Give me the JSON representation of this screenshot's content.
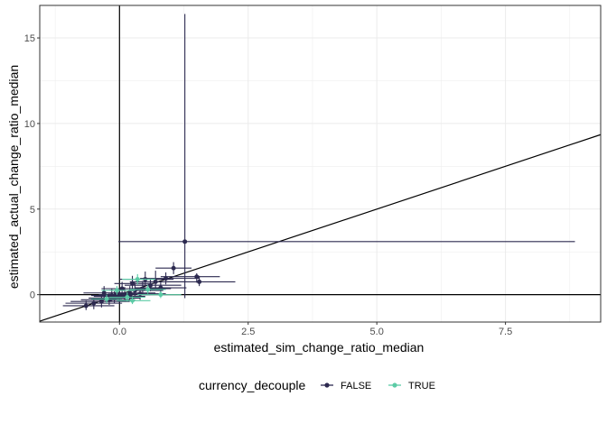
{
  "chart_data": {
    "type": "scatter",
    "xlabel": "estimated_sim_change_ratio_median",
    "ylabel": "estimated_actual_change_ratio_median",
    "xlim": [
      -1.55,
      9.35
    ],
    "ylim": [
      -1.6,
      16.9
    ],
    "xticks": [
      0,
      2.5,
      5,
      7.5
    ],
    "xtick_labels": [
      "0.0",
      "2.5",
      "5.0",
      "7.5"
    ],
    "yticks": [
      0,
      5,
      10,
      15
    ],
    "ytick_labels": [
      "0",
      "5",
      "10",
      "15"
    ],
    "grid": true,
    "reference_lines": {
      "vertical_x": 0,
      "horizontal_y": 0,
      "diagonal": {
        "slope": 1,
        "intercept": 0
      }
    },
    "legend": {
      "title": "currency_decouple",
      "position": "bottom",
      "entries": [
        "FALSE",
        "TRUE"
      ]
    },
    "series": [
      {
        "name": "FALSE",
        "color": "#2d2a50",
        "points": [
          {
            "x": 1.27,
            "y": 3.1,
            "xmin": -0.02,
            "xmax": 8.85,
            "ymin": -0.2,
            "ymax": 16.4
          },
          {
            "x": 1.05,
            "y": 1.55,
            "xmin": 0.7,
            "xmax": 1.4,
            "ymin": 1.2,
            "ymax": 1.9
          },
          {
            "x": 1.55,
            "y": 0.75,
            "xmin": 0.9,
            "xmax": 2.25,
            "ymin": 0.5,
            "ymax": 1.1
          },
          {
            "x": 1.5,
            "y": 1.05,
            "xmin": 0.8,
            "xmax": 1.95,
            "ymin": 0.7,
            "ymax": 1.25
          },
          {
            "x": 0.9,
            "y": 0.95,
            "xmin": 0.4,
            "xmax": 1.55,
            "ymin": 0.6,
            "ymax": 1.3
          },
          {
            "x": 0.7,
            "y": 0.75,
            "xmin": 0.2,
            "xmax": 1.3,
            "ymin": 0.4,
            "ymax": 1.4
          },
          {
            "x": 0.6,
            "y": 0.55,
            "xmin": 0.1,
            "xmax": 1.2,
            "ymin": 0.2,
            "ymax": 0.9
          },
          {
            "x": 0.45,
            "y": 0.35,
            "xmin": -0.05,
            "xmax": 1.0,
            "ymin": 0.0,
            "ymax": 0.8
          },
          {
            "x": 0.3,
            "y": 0.25,
            "xmin": -0.2,
            "xmax": 0.85,
            "ymin": -0.1,
            "ymax": 0.7
          },
          {
            "x": 0.2,
            "y": 0.1,
            "xmin": -0.3,
            "xmax": 0.7,
            "ymin": -0.3,
            "ymax": 0.5
          },
          {
            "x": 0.1,
            "y": 0.0,
            "xmin": -0.4,
            "xmax": 0.6,
            "ymin": -0.4,
            "ymax": 0.45
          },
          {
            "x": 0.0,
            "y": -0.1,
            "xmin": -0.5,
            "xmax": 0.5,
            "ymin": -0.45,
            "ymax": 0.3
          },
          {
            "x": -0.1,
            "y": -0.2,
            "xmin": -0.6,
            "xmax": 0.4,
            "ymin": -0.5,
            "ymax": 0.2
          },
          {
            "x": -0.2,
            "y": -0.3,
            "xmin": -0.75,
            "xmax": 0.3,
            "ymin": -0.6,
            "ymax": 0.1
          },
          {
            "x": -0.35,
            "y": -0.4,
            "xmin": -0.95,
            "xmax": 0.2,
            "ymin": -0.75,
            "ymax": -0.05
          },
          {
            "x": -0.5,
            "y": -0.5,
            "xmin": -1.05,
            "xmax": 0.05,
            "ymin": -0.85,
            "ymax": -0.2
          },
          {
            "x": -0.65,
            "y": -0.65,
            "xmin": -1.1,
            "xmax": -0.1,
            "ymin": -0.9,
            "ymax": -0.35
          },
          {
            "x": -0.3,
            "y": 0.1,
            "xmin": -0.7,
            "xmax": 0.3,
            "ymin": -0.2,
            "ymax": 0.5
          },
          {
            "x": 0.25,
            "y": 0.65,
            "xmin": -0.1,
            "xmax": 0.65,
            "ymin": 0.2,
            "ymax": 1.1
          },
          {
            "x": 0.5,
            "y": 0.9,
            "xmin": 0.0,
            "xmax": 1.05,
            "ymin": 0.5,
            "ymax": 1.35
          },
          {
            "x": 0.05,
            "y": 0.35,
            "xmin": -0.35,
            "xmax": 0.45,
            "ymin": 0.0,
            "ymax": 0.75
          },
          {
            "x": -0.15,
            "y": -0.05,
            "xmin": -0.55,
            "xmax": 0.25,
            "ymin": -0.4,
            "ymax": 0.35
          },
          {
            "x": 0.4,
            "y": 0.05,
            "xmin": -0.1,
            "xmax": 0.9,
            "ymin": -0.3,
            "ymax": 0.4
          },
          {
            "x": 0.8,
            "y": 0.4,
            "xmin": 0.3,
            "xmax": 1.3,
            "ymin": 0.1,
            "ymax": 0.75
          }
        ]
      },
      {
        "name": "TRUE",
        "color": "#5ccba6",
        "points": [
          {
            "x": 0.8,
            "y": 0.0,
            "xmin": 0.35,
            "xmax": 1.2,
            "ymin": -0.2,
            "ymax": 0.2
          },
          {
            "x": 0.35,
            "y": 0.9,
            "xmin": 0.05,
            "xmax": 0.7,
            "ymin": 0.6,
            "ymax": 1.2
          },
          {
            "x": 0.15,
            "y": -0.15,
            "xmin": -0.2,
            "xmax": 0.5,
            "ymin": -0.4,
            "ymax": 0.15
          },
          {
            "x": 0.55,
            "y": 0.3,
            "xmin": 0.2,
            "xmax": 0.9,
            "ymin": 0.05,
            "ymax": 0.55
          },
          {
            "x": -0.05,
            "y": 0.25,
            "xmin": -0.35,
            "xmax": 0.3,
            "ymin": 0.0,
            "ymax": 0.5
          },
          {
            "x": 0.25,
            "y": -0.35,
            "xmin": -0.05,
            "xmax": 0.6,
            "ymin": -0.55,
            "ymax": -0.1
          },
          {
            "x": -0.25,
            "y": -0.25,
            "xmin": -0.55,
            "xmax": 0.05,
            "ymin": -0.5,
            "ymax": 0.0
          }
        ]
      }
    ]
  }
}
